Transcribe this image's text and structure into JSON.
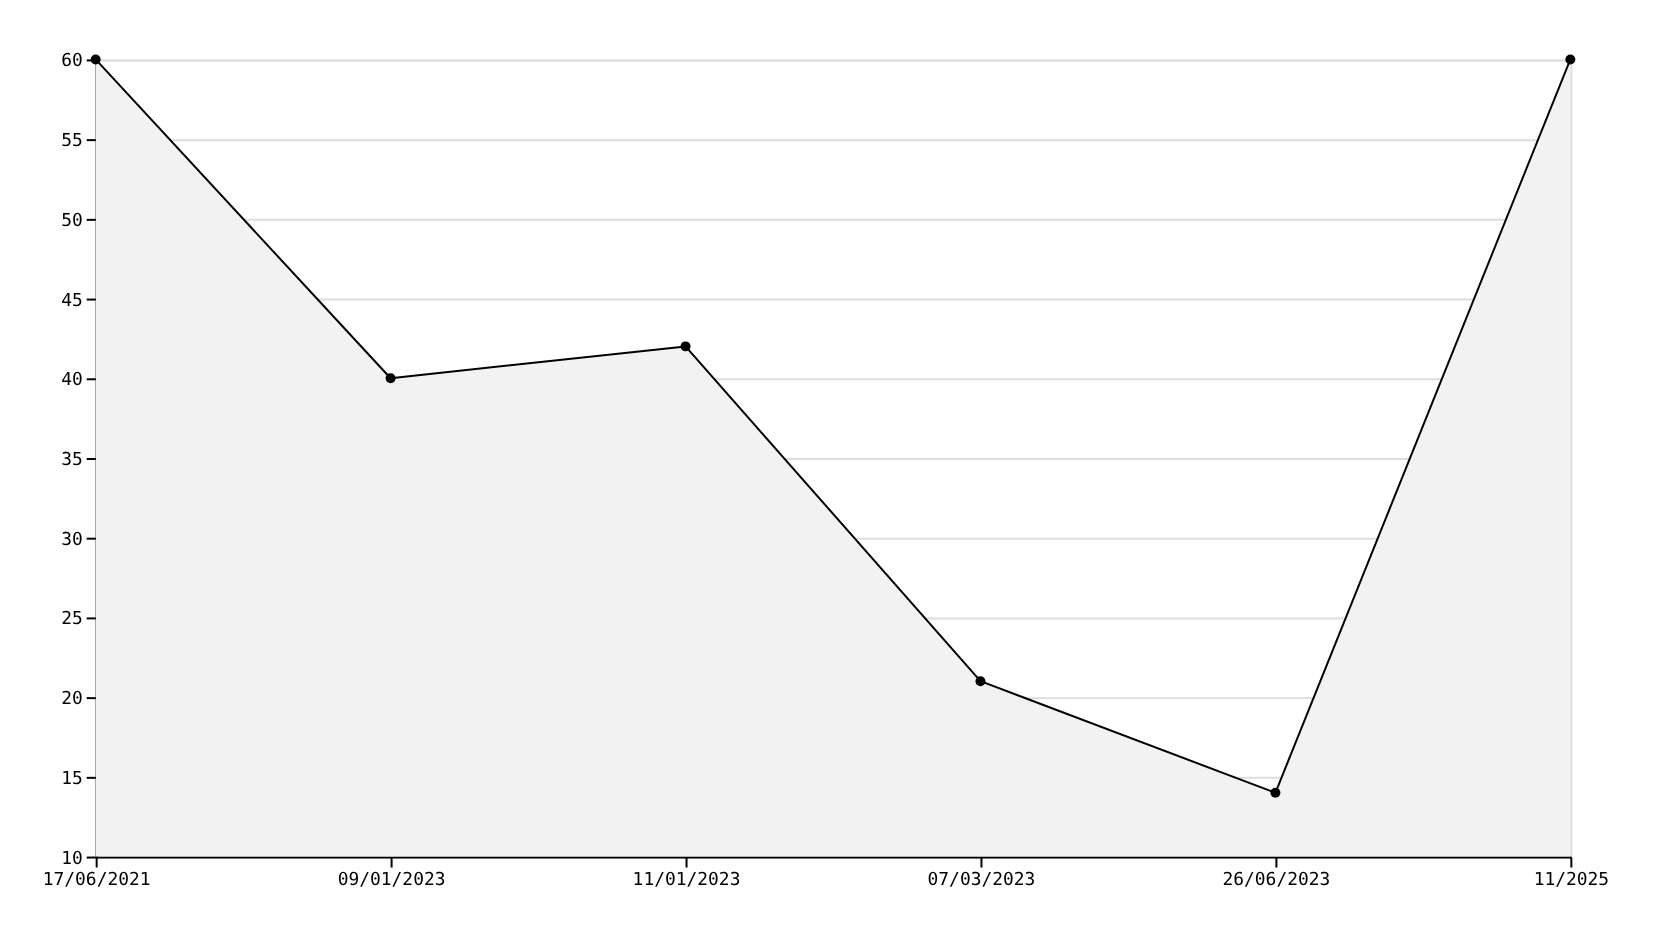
{
  "chart_data": {
    "type": "area",
    "categories": [
      "17/06/2021",
      "09/01/2023",
      "11/01/2023",
      "07/03/2023",
      "26/06/2023",
      "11/2025"
    ],
    "series": [
      {
        "color": "#000000",
        "values": [
          60,
          40,
          42,
          21,
          14,
          60
        ]
      }
    ],
    "ylim": [
      10,
      60
    ],
    "yticks": [
      10,
      15,
      20,
      25,
      30,
      35,
      40,
      45,
      50,
      55,
      60
    ],
    "grid": "y",
    "marker": "circle",
    "line_style": "solid"
  }
}
